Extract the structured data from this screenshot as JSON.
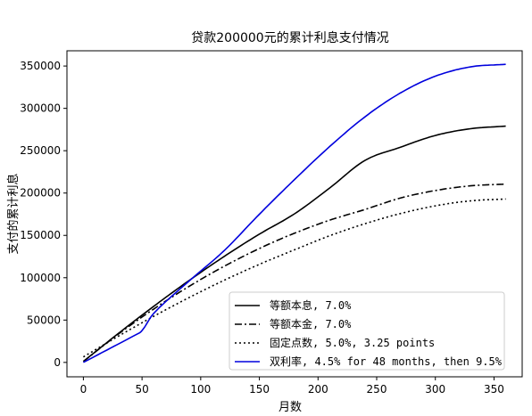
{
  "chart_data": {
    "type": "line",
    "title": "贷款200000元的累计利息支付情况",
    "xlabel": "月数",
    "ylabel": "支付的累计利息",
    "xlim": [
      -14,
      374
    ],
    "ylim": [
      -17000,
      368000
    ],
    "xticks": [
      0,
      50,
      100,
      150,
      200,
      250,
      300,
      350
    ],
    "yticks": [
      0,
      50000,
      100000,
      150000,
      200000,
      250000,
      300000,
      350000
    ],
    "grid": false,
    "legend_position": "lower-right",
    "series": [
      {
        "name": "等额本息, 7.0%",
        "color": "#000000",
        "style": "solid",
        "x": [
          0,
          30,
          60,
          90,
          120,
          150,
          180,
          210,
          240,
          270,
          300,
          330,
          360
        ],
        "y": [
          1167,
          34400,
          66300,
          96600,
          125100,
          151500,
          175500,
          206000,
          238500,
          254000,
          268000,
          276000,
          279000
        ]
      },
      {
        "name": "等额本金, 7.0%",
        "color": "#000000",
        "style": "dashdot",
        "x": [
          0,
          30,
          60,
          90,
          120,
          150,
          180,
          210,
          240,
          270,
          300,
          330,
          360
        ],
        "y": [
          1167,
          33600,
          63100,
          89700,
          113500,
          134500,
          152600,
          168000,
          180600,
          194000,
          203000,
          208500,
          210600
        ]
      },
      {
        "name": "固定点数, 5.0%, 3.25 points",
        "color": "#000000",
        "style": "dotted",
        "x": [
          0,
          30,
          60,
          90,
          120,
          150,
          180,
          210,
          240,
          270,
          300,
          330,
          360
        ],
        "y": [
          6500,
          31100,
          54500,
          76500,
          97000,
          115800,
          133000,
          149600,
          163800,
          175700,
          184900,
          190800,
          193000
        ]
      },
      {
        "name": "双利率, 4.5% for 48 months, then 9.5%",
        "color": "#0000dd",
        "style": "solid",
        "x": [
          0,
          48,
          60,
          90,
          120,
          150,
          180,
          210,
          240,
          270,
          300,
          330,
          360
        ],
        "y": [
          0,
          35000,
          58000,
          96000,
          132000,
          175000,
          216000,
          255000,
          290000,
          318000,
          338000,
          349000,
          352000
        ]
      }
    ]
  }
}
